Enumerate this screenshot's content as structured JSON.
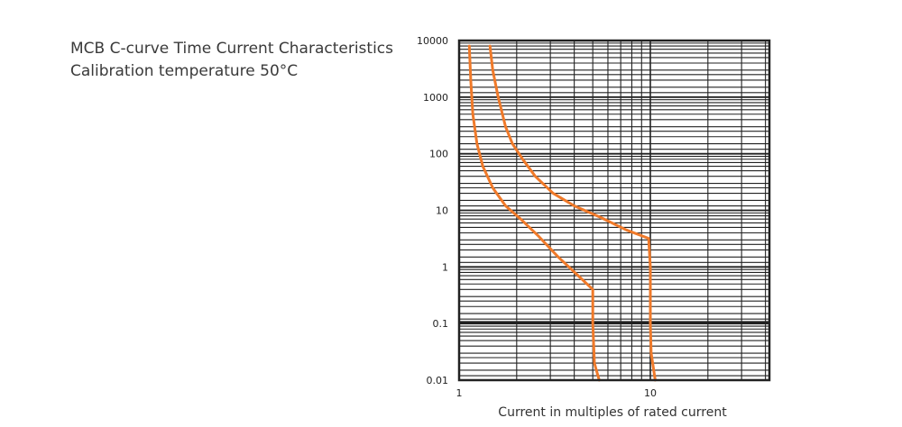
{
  "chart_data": {
    "type": "line",
    "title": "MCB C-curve Time Current Characteristics",
    "subtitle": "Calibration temperature 50°C",
    "xlabel": "Current in multiples of rated current",
    "ylabel": "",
    "x_scale": "log",
    "y_scale": "log",
    "xlim": [
      1,
      50
    ],
    "ylim": [
      0.01,
      10000
    ],
    "grid": true,
    "x_ticks": [
      {
        "value": 1,
        "label": "1"
      },
      {
        "value": 10,
        "label": "10"
      }
    ],
    "y_ticks": [
      {
        "value": 10000,
        "label": "10000"
      },
      {
        "value": 1000,
        "label": "1000"
      },
      {
        "value": 100,
        "label": "100"
      },
      {
        "value": 10,
        "label": "10"
      },
      {
        "value": 1,
        "label": "1"
      },
      {
        "value": 0.1,
        "label": "0.1"
      },
      {
        "value": 0.01,
        "label": "0.01"
      }
    ],
    "line_color": "#f07a2a",
    "grid_color": "#222222",
    "series": [
      {
        "points": [
          [
            1.13,
            8000
          ],
          [
            1.15,
            2000
          ],
          [
            1.18,
            500
          ],
          [
            1.24,
            150
          ],
          [
            1.33,
            60
          ],
          [
            1.5,
            25
          ],
          [
            1.75,
            12
          ],
          [
            2.1,
            7
          ],
          [
            2.6,
            3.5
          ],
          [
            3.3,
            1.5
          ],
          [
            4.2,
            0.7
          ],
          [
            5.0,
            0.4
          ],
          [
            5.0,
            0.1
          ],
          [
            5.1,
            0.02
          ],
          [
            5.4,
            0.01
          ]
        ]
      },
      {
        "points": [
          [
            1.45,
            8000
          ],
          [
            1.5,
            3000
          ],
          [
            1.6,
            1000
          ],
          [
            1.75,
            300
          ],
          [
            1.9,
            150
          ],
          [
            2.15,
            80
          ],
          [
            2.5,
            40
          ],
          [
            3.1,
            20
          ],
          [
            4.0,
            12
          ],
          [
            5.5,
            7.5
          ],
          [
            7.5,
            4.5
          ],
          [
            9.8,
            3.2
          ],
          [
            10.0,
            1
          ],
          [
            10.0,
            0.1
          ],
          [
            10.1,
            0.03
          ],
          [
            10.6,
            0.01
          ]
        ]
      }
    ]
  }
}
